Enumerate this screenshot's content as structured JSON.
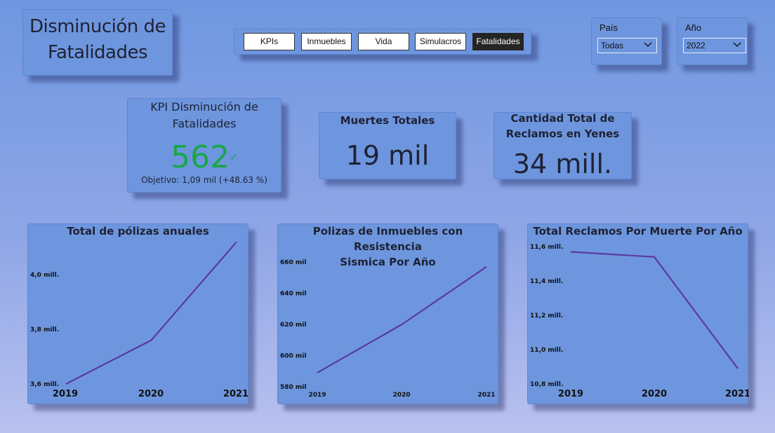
{
  "header": {
    "title_line1": "Disminución de",
    "title_line2": "Fatalidades"
  },
  "nav": {
    "tabs": [
      {
        "label": "KPIs",
        "active": false
      },
      {
        "label": "Inmuebles",
        "active": false
      },
      {
        "label": "Vida",
        "active": false
      },
      {
        "label": "Simulacros",
        "active": false
      },
      {
        "label": "Fatalidades",
        "active": true
      }
    ]
  },
  "filters": {
    "country": {
      "label": "País",
      "value": "Todas"
    },
    "year": {
      "label": "Año",
      "value": "2022"
    }
  },
  "kpis": {
    "main": {
      "title_line1": "KPI Disminución de",
      "title_line2": "Fatalidades",
      "value": "562",
      "check": "✓",
      "goal": "Objetivo: 1,09 mil (+48.63 %)",
      "value_color": "#1aa64a"
    },
    "deaths": {
      "title": "Muertes Totales",
      "value": "19 mil"
    },
    "claims": {
      "title_line1": "Cantidad Total de",
      "title_line2": "Reclamos en Yenes",
      "value": "34 mill."
    }
  },
  "colors": {
    "line": "#5a3aa0",
    "card": "#6e96de"
  },
  "chart_data": [
    {
      "type": "line",
      "title": "Total de pólizas anuales",
      "categories": [
        "2019",
        "2020",
        "2021"
      ],
      "values": [
        3.6,
        3.76,
        4.12
      ],
      "y_ticks": [
        "3,6 mill.",
        "3,8 mill.",
        "4,0 mill."
      ],
      "y_tick_values": [
        3.6,
        3.8,
        4.0
      ],
      "ylim": [
        3.6,
        4.0
      ]
    },
    {
      "type": "line",
      "title_line1": "Polizas de Inmuebles con Resistencia",
      "title_line2": "Sismica Por Año",
      "categories": [
        "2019",
        "2020",
        "2021"
      ],
      "values": [
        589,
        620,
        657
      ],
      "y_ticks": [
        "580 mil",
        "600 mil",
        "620 mil",
        "640 mil",
        "660 mil"
      ],
      "y_tick_values": [
        580,
        600,
        620,
        640,
        660
      ],
      "ylim": [
        580,
        660
      ]
    },
    {
      "type": "line",
      "title": "Total Reclamos Por Muerte Por Año",
      "categories": [
        "2019",
        "2020",
        "2021"
      ],
      "values": [
        11.57,
        11.54,
        10.89
      ],
      "y_ticks": [
        "10,8 mill.",
        "11,0 mill.",
        "11,2 mill.",
        "11,4 mill.",
        "11,6 mill."
      ],
      "y_tick_values": [
        10.8,
        11.0,
        11.2,
        11.4,
        11.6
      ],
      "ylim": [
        10.8,
        11.6
      ]
    }
  ]
}
